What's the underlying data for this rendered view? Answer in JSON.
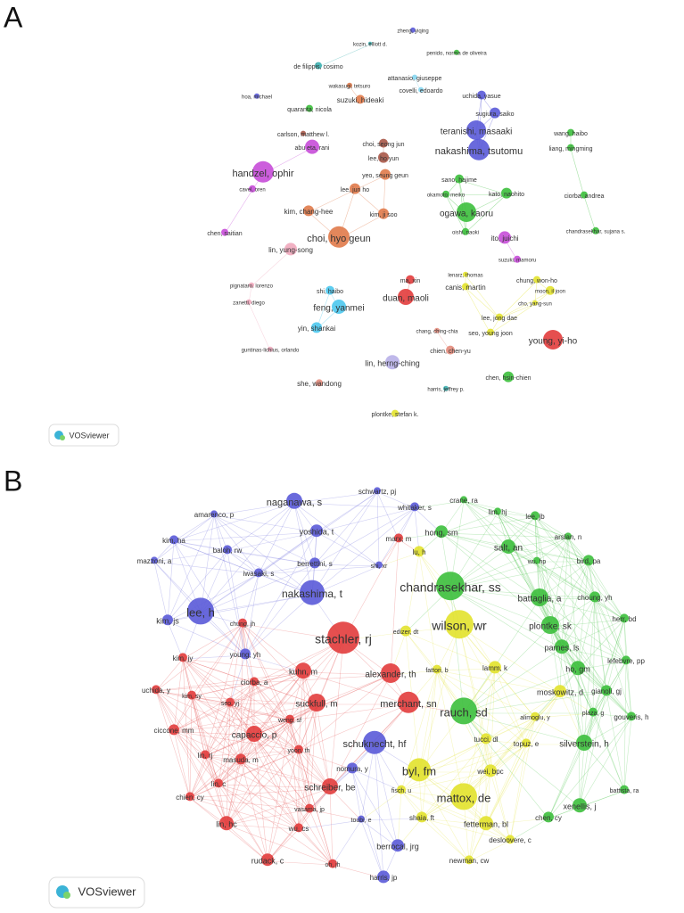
{
  "panels": [
    {
      "label": "A",
      "logo": "VOSviewer",
      "nodes": [
        "zheng, yiqing",
        "kozin, elliott d.",
        "penido, norma de oliveira",
        "de filippis, cosimo",
        "attanasio, giuseppe",
        "wakasugi, tetsuro",
        "covelli, edoardo",
        "uchida, yasue",
        "hoa, michael",
        "suzuki, hideaki",
        "quaranta, nicola",
        "sugiura, saiko",
        "teranishi, masaaki",
        "wang, haibo",
        "carlson, matthew l.",
        "abu eta, rani",
        "choi, seong jun",
        "liang, mingming",
        "nakashima, tsutomu",
        "lee, ho yun",
        "handzel, ophir",
        "yeo, seung geun",
        "sano, hajime",
        "lee, jun ho",
        "cavel, oren",
        "okamoto, meiko",
        "kato, naohito",
        "ciorba, andrea",
        "kim, chang-hee",
        "kim, ji soo",
        "ogawa, kaoru",
        "oishi, naoki",
        "chandrasekhar, sujana s.",
        "chen, saitian",
        "ito, juichi",
        "choi, hyo geun",
        "lin, yung-song",
        "suzuki, mamoru",
        "lenarz, thomas",
        "ma, xin",
        "chung, won-ho",
        "canis, martin",
        "pignataro, lorenzo",
        "shi, haibo",
        "moon, il joon",
        "duan, maoli",
        "zanetti, diego",
        "feng, yanmei",
        "cho, yang-sun",
        "lee, jong dae",
        "yin, shankai",
        "chang, ching-chia",
        "seo, young joon",
        "young, yi-ho",
        "guntinas-lichius, orlando",
        "chien, chen-yu",
        "lin, herng-ching",
        "chen, hsin-chien",
        "she, wandong",
        "harris, jeffrey p.",
        "plontke, stefan k."
      ]
    },
    {
      "label": "B",
      "logo": "VOSviewer",
      "nodes": [
        "schwartz, pj",
        "crane, ra",
        "naganawa, s",
        "whitaker, s",
        "amarenco, p",
        "lim, hj",
        "lee, jb",
        "yoshida, t",
        "hong, sm",
        "kim, ha",
        "marx, m",
        "arslan, n",
        "salt, an",
        "baloh, rw",
        "lu, h",
        "wu, hp",
        "bird, pa",
        "berrettini, s",
        "shi, xr",
        "mazzoni, a",
        "chandrasekhar, ss",
        "iwasaki, s",
        "battaglia, a",
        "choung, yh",
        "nakashima, t",
        "lee, h",
        "herr, bd",
        "wilson, wr",
        "plontke, sk",
        "kim, js",
        "edizer, dt",
        "chung, jh",
        "stachler, rj",
        "lefebvre, pp",
        "parnes, ls",
        "young, yh",
        "kim, jy",
        "fattori, b",
        "lamm, k",
        "ho, gm",
        "alexander, th",
        "kuhn, m",
        "uchida, y",
        "ciorba, a",
        "gianoli, gj",
        "kim, sy",
        "moskowitz, d",
        "merchant, sn",
        "suckfull, m",
        "alimoglu, y",
        "plaza, g",
        "seo, yj",
        "rauch, sd",
        "gouveris, h",
        "weng, sf",
        "ciccone, mm",
        "capaccio, p",
        "tucci, dl",
        "topuz, e",
        "silverstein, h",
        "schuknecht, hf",
        "yoon, th",
        "lin, rj",
        "masuda, m",
        "nomura, y",
        "byl, fm",
        "wei, bpc",
        "lin, c",
        "battista, ra",
        "schreiber, be",
        "fisch, u",
        "mattox, de",
        "xenellis, j",
        "chien, cy",
        "vasama, jp",
        "toubi, e",
        "shaia, ft",
        "fetterman, bl",
        "chen, cy",
        "lin, hc",
        "wu, cs",
        "berrocal, jrg",
        "desloovere, c",
        "rudack, c",
        "oh, jh",
        "newman, cw",
        "harris, jp"
      ]
    }
  ]
}
